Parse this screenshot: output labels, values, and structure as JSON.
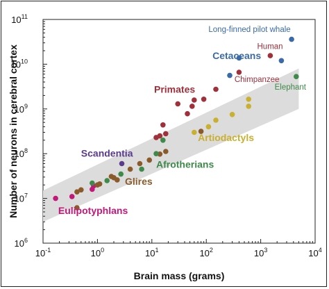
{
  "chart_data": {
    "type": "scatter",
    "xlabel": "Brain mass (grams)",
    "ylabel": "Number of neurons in cerebral cortex",
    "xscale": "log",
    "yscale": "log",
    "xlim": [
      0.1,
      10000
    ],
    "ylim": [
      1000000,
      100000000000
    ],
    "x_ticks": [
      {
        "value": 0.1,
        "base": "10",
        "exp": "-1"
      },
      {
        "value": 1,
        "base": "10",
        "exp": "0"
      },
      {
        "value": 10,
        "base": "10",
        "exp": "1"
      },
      {
        "value": 100,
        "base": "10",
        "exp": "2"
      },
      {
        "value": 1000,
        "base": "10",
        "exp": "3"
      },
      {
        "value": 10000,
        "base": "10",
        "exp": "4"
      }
    ],
    "y_ticks": [
      {
        "value": 1000000,
        "base": "10",
        "exp": "6"
      },
      {
        "value": 10000000,
        "base": "10",
        "exp": "7"
      },
      {
        "value": 100000000,
        "base": "10",
        "exp": "8"
      },
      {
        "value": 1000000000,
        "base": "10",
        "exp": "9"
      },
      {
        "value": 10000000000,
        "base": "10",
        "exp": "10"
      },
      {
        "value": 100000000000,
        "base": "10",
        "exp": "11"
      }
    ],
    "band": {
      "color": "#dcdcdc",
      "lower": [
        [
          0.1,
          3000000
        ],
        [
          5000,
          1000000000
        ]
      ],
      "upper": [
        [
          0.1,
          15000000
        ],
        [
          5000,
          8000000000
        ]
      ]
    },
    "series": [
      {
        "name": "Eulipotyphlans",
        "color": "#c2187a",
        "label_pos": [
          0.19,
          4500000
        ],
        "points": [
          [
            0.17,
            10000000
          ],
          [
            0.34,
            11000000
          ],
          [
            0.8,
            16000000
          ],
          [
            0.85,
            19000000
          ]
        ]
      },
      {
        "name": "Glires",
        "color": "#8b5a2b",
        "label_pos": [
          3.2,
          20000000
        ],
        "points": [
          [
            0.42,
            6200000
          ],
          [
            0.42,
            14000000
          ],
          [
            0.5,
            15500000
          ],
          [
            1.0,
            20000000
          ],
          [
            1.1,
            21000000
          ],
          [
            1.8,
            31000000
          ],
          [
            2.0,
            29000000
          ],
          [
            2.3,
            26000000
          ],
          [
            4.0,
            45000000
          ],
          [
            6.0,
            60000000
          ],
          [
            9.0,
            72000000
          ],
          [
            14.0,
            98000000
          ],
          [
            18.0,
            112000000
          ],
          [
            80.0,
            315000000
          ]
        ]
      },
      {
        "name": "Scandentia",
        "color": "#5a3a8c",
        "label_pos": [
          0.5,
          86000000
        ],
        "points": [
          [
            2.8,
            60000000
          ]
        ]
      },
      {
        "name": "Afrotherians",
        "color": "#3e8a4a",
        "label_pos": [
          12.0,
          48000000
        ],
        "points": [
          [
            0.8,
            22000000
          ],
          [
            1.5,
            25000000
          ],
          [
            2.7,
            35000000
          ],
          [
            6.5,
            45000000
          ],
          [
            12.0,
            100000000
          ],
          [
            16.0,
            200000000
          ],
          [
            4500,
            5300000000
          ]
        ]
      },
      {
        "name": "Artiodactyls",
        "color": "#c9b030",
        "label_pos": [
          70,
          190000000
        ],
        "points": [
          [
            60,
            300000000
          ],
          [
            110,
            400000000
          ],
          [
            150,
            560000000
          ],
          [
            300,
            750000000
          ],
          [
            600,
            1150000000
          ],
          [
            600,
            1650000000
          ]
        ]
      },
      {
        "name": "Primates",
        "color": "#a0303a",
        "label_pos": [
          11,
          2300000000
        ],
        "points": [
          [
            14,
            250000000
          ],
          [
            18,
            280000000
          ],
          [
            12,
            230000000
          ],
          [
            16,
            440000000
          ],
          [
            30,
            1300000000
          ],
          [
            45,
            780000000
          ],
          [
            55,
            1150000000
          ],
          [
            60,
            1580000000
          ],
          [
            90,
            1650000000
          ],
          [
            150,
            2750000000
          ],
          [
            400,
            6600000000
          ],
          [
            1500,
            15500000000
          ]
        ]
      },
      {
        "name": "Cetaceans",
        "color": "#3a6aa8",
        "label_pos": [
          130,
          13000000000
        ],
        "points": [
          [
            270,
            5600000000
          ],
          [
            400,
            13800000000
          ],
          [
            2400,
            12000000000
          ],
          [
            3700,
            36000000000
          ]
        ]
      }
    ],
    "annotations": [
      {
        "text": "Long-finned pilot whale",
        "color": "#3a6aa8",
        "at": [
          110,
          53000000000
        ]
      },
      {
        "text": "Human",
        "color": "#a0303a",
        "at": [
          860,
          22000000000
        ]
      },
      {
        "text": "Chimpanzee",
        "color": "#a0303a",
        "at": [
          330,
          4000000000
        ]
      },
      {
        "text": "Elephant",
        "color": "#3e8a4a",
        "at": [
          1800,
          2700000000
        ]
      }
    ]
  }
}
